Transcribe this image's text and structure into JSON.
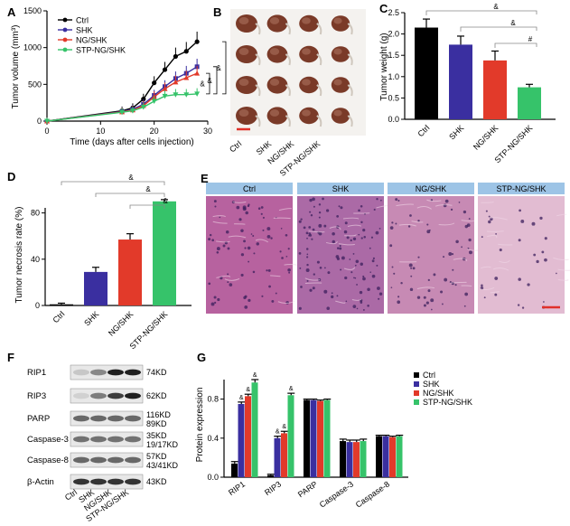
{
  "colors": {
    "ctrl": "#000000",
    "shk": "#3a2fa0",
    "ng": "#e23a2a",
    "stp": "#36c36a",
    "he_a": "#b7629f",
    "he_b": "#ab6aa6",
    "he_c": "#c78ab4",
    "he_d": "#e2bcd2",
    "header_bar": "#9dc4e6",
    "tumor": "#7a3a28",
    "scale_bar": "#e0302a"
  },
  "panel_letters": [
    "A",
    "B",
    "C",
    "D",
    "E",
    "F",
    "G"
  ],
  "significance_mark": "&",
  "sig_hash": "#",
  "chart_data": [
    {
      "id": "A",
      "type": "line",
      "title": "",
      "xlabel": "Time (days after cells injection)",
      "ylabel": "Tumor volume (mm³)",
      "xlim": [
        0,
        30
      ],
      "ylim": [
        0,
        1500
      ],
      "xticks": [
        0,
        10,
        20,
        30
      ],
      "yticks": [
        0,
        500,
        1000,
        1500
      ],
      "x": [
        0,
        14,
        16,
        18,
        20,
        22,
        24,
        26,
        28
      ],
      "series": [
        {
          "name": "Ctrl",
          "color_key": "ctrl",
          "marker": "circle",
          "values": [
            0,
            140,
            180,
            300,
            520,
            700,
            880,
            950,
            1080
          ]
        },
        {
          "name": "SHK",
          "color_key": "shk",
          "marker": "square",
          "values": [
            0,
            130,
            160,
            230,
            350,
            470,
            580,
            650,
            740
          ]
        },
        {
          "name": "NG/SHK",
          "color_key": "ng",
          "marker": "triangle",
          "values": [
            0,
            125,
            150,
            210,
            330,
            440,
            530,
            590,
            650
          ]
        },
        {
          "name": "STP-NG/SHK",
          "color_key": "stp",
          "marker": "triangle-down",
          "values": [
            0,
            120,
            140,
            190,
            270,
            340,
            360,
            360,
            370
          ]
        }
      ],
      "legend": "top-left",
      "brackets": [
        "&",
        "&",
        "&"
      ]
    },
    {
      "id": "C",
      "type": "bar",
      "xlabel": "",
      "ylabel": "Tumor weight (g)",
      "ylim": [
        0,
        2.5
      ],
      "yticks": [
        0.0,
        0.5,
        1.0,
        1.5,
        2.0,
        2.5
      ],
      "yticklabels": [
        "0.0",
        "0.5",
        "1.0",
        "1.5",
        "2.0",
        "2.5"
      ],
      "categories": [
        "Ctrl",
        "SHK",
        "NG/SHK",
        "STP-NG/SHK"
      ],
      "values": [
        2.15,
        1.75,
        1.38,
        0.75
      ],
      "errors": [
        0.2,
        0.2,
        0.22,
        0.07
      ],
      "color_keys": [
        "ctrl",
        "shk",
        "ng",
        "stp"
      ],
      "brackets": [
        "&",
        "&",
        "#"
      ]
    },
    {
      "id": "D",
      "type": "bar",
      "xlabel": "",
      "ylabel": "Tumor necrosis rate (%)",
      "ylim": [
        0,
        100
      ],
      "yticks": [
        0,
        40,
        80
      ],
      "yticklabels": [
        "0",
        "40",
        "80"
      ],
      "categories": [
        "Ctrl",
        "SHK",
        "NG/SHK",
        "STP-NG/SHK"
      ],
      "values": [
        1,
        29,
        57,
        90
      ],
      "errors": [
        1,
        4,
        5,
        1.5
      ],
      "color_keys": [
        "ctrl",
        "shk",
        "ng",
        "stp"
      ],
      "brackets": [
        "&",
        "&",
        "&"
      ]
    },
    {
      "id": "G",
      "type": "bar",
      "xlabel": "",
      "ylabel": "Protein expression",
      "ylim": [
        0,
        1.0
      ],
      "yticks": [
        0.0,
        0.4,
        0.8
      ],
      "yticklabels": [
        "0.0",
        "0.4",
        "0.8"
      ],
      "categories": [
        "RIP1",
        "RIP3",
        "PARP",
        "Caspase-3",
        "Caspase-8"
      ],
      "series": [
        {
          "name": "Ctrl",
          "color_key": "ctrl",
          "values": [
            0.14,
            0.02,
            0.79,
            0.37,
            0.42
          ],
          "errors": [
            0.02,
            0.01,
            0.01,
            0.02,
            0.01
          ]
        },
        {
          "name": "SHK",
          "color_key": "shk",
          "values": [
            0.75,
            0.4,
            0.79,
            0.36,
            0.42
          ],
          "errors": [
            0.02,
            0.02,
            0.01,
            0.02,
            0.01
          ]
        },
        {
          "name": "NG/SHK",
          "color_key": "ng",
          "values": [
            0.83,
            0.45,
            0.78,
            0.36,
            0.41
          ],
          "errors": [
            0.02,
            0.02,
            0.01,
            0.02,
            0.01
          ]
        },
        {
          "name": "STP-NG/SHK",
          "color_key": "stp",
          "values": [
            0.97,
            0.84,
            0.79,
            0.37,
            0.42
          ],
          "errors": [
            0.03,
            0.02,
            0.01,
            0.02,
            0.01
          ]
        }
      ],
      "legend": "top-right",
      "sig": [
        [
          "RIP1",
          "SHK"
        ],
        [
          "RIP1",
          "NG/SHK"
        ],
        [
          "RIP1",
          "STP-NG/SHK"
        ],
        [
          "RIP3",
          "SHK"
        ],
        [
          "RIP3",
          "NG/SHK"
        ],
        [
          "RIP3",
          "STP-NG/SHK"
        ]
      ]
    }
  ],
  "panel_B": {
    "groups": [
      "Ctrl",
      "SHK",
      "NG/SHK",
      "STP-NG/SHK"
    ],
    "rows": 4
  },
  "panel_E": {
    "headers": [
      "Ctrl",
      "SHK",
      "NG/SHK",
      "STP-NG/SHK"
    ]
  },
  "panel_F": {
    "blots": [
      {
        "label": "RIP1",
        "sizes": [
          "74KD"
        ]
      },
      {
        "label": "RIP3",
        "sizes": [
          "62KD"
        ]
      },
      {
        "label": "PARP",
        "sizes": [
          "116KD",
          "89KD"
        ]
      },
      {
        "label": "Caspase-3",
        "sizes": [
          "35KD",
          "19/17KD"
        ]
      },
      {
        "label": "Caspase-8",
        "sizes": [
          "57KD",
          "43/41KD"
        ]
      },
      {
        "label": "β-Actin",
        "sizes": [
          "43KD"
        ]
      }
    ],
    "lanes": [
      "Ctrl",
      "SHK",
      "NG/SHK",
      "STP-NG/SHK"
    ],
    "band_intensity": [
      [
        0.15,
        0.45,
        0.95,
        0.95
      ],
      [
        0.1,
        0.5,
        0.8,
        0.95
      ],
      [
        0.6,
        0.6,
        0.6,
        0.6
      ],
      [
        0.55,
        0.55,
        0.55,
        0.55
      ],
      [
        0.6,
        0.6,
        0.6,
        0.6
      ],
      [
        0.85,
        0.85,
        0.85,
        0.85
      ]
    ]
  }
}
